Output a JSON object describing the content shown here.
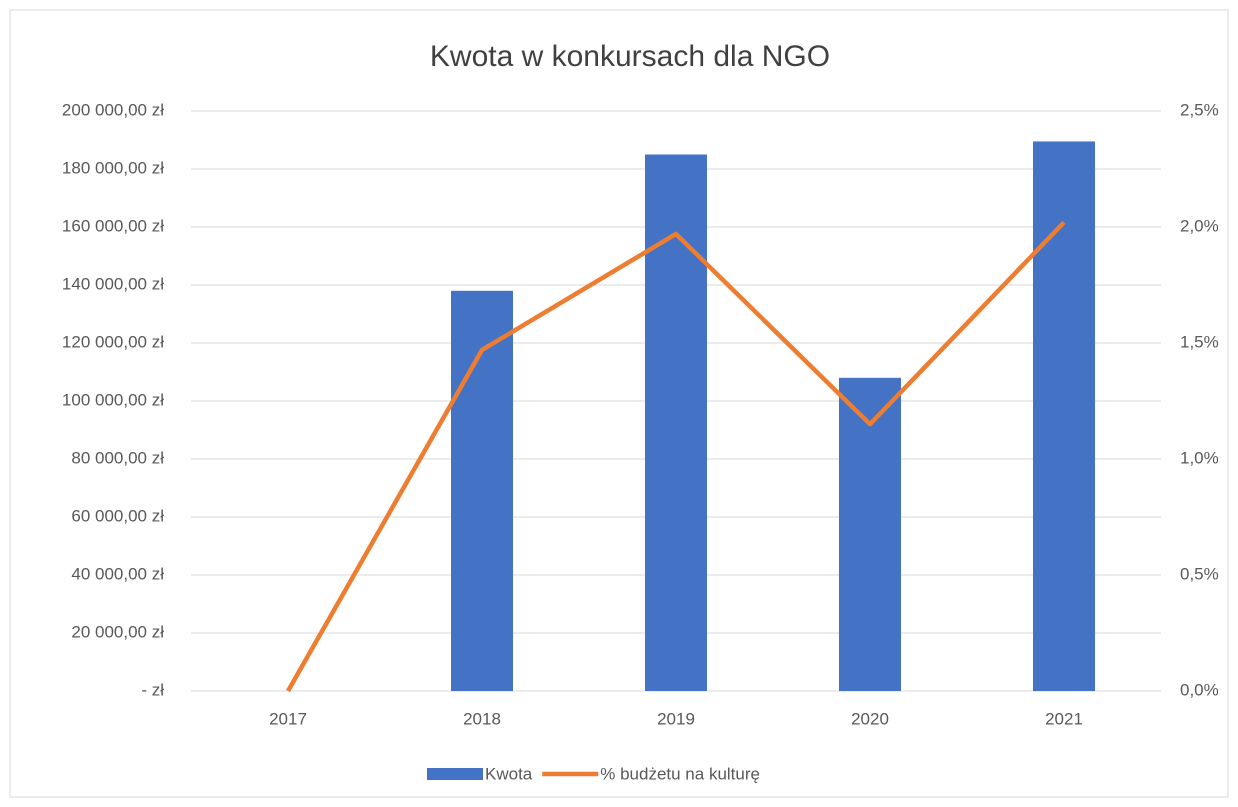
{
  "chart_data": {
    "type": "bar",
    "title": "Kwota w konkursach dla NGO",
    "categories": [
      "2017",
      "2018",
      "2019",
      "2020",
      "2021"
    ],
    "series": [
      {
        "name": "Kwota",
        "type": "bar",
        "axis": "y",
        "color": "#4472c4",
        "values": [
          0,
          138000,
          185000,
          108000,
          189500
        ]
      },
      {
        "name": "% budżetu na kulturę",
        "type": "line",
        "axis": "y2",
        "color": "#ed7d31",
        "values": [
          0,
          1.47,
          1.97,
          1.15,
          2.02
        ]
      }
    ],
    "ylim": [
      0,
      200000
    ],
    "yticks": [
      {
        "value": 0,
        "label": "-   zł"
      },
      {
        "value": 20000,
        "label": "20 000,00 zł"
      },
      {
        "value": 40000,
        "label": "40 000,00 zł"
      },
      {
        "value": 60000,
        "label": "60 000,00 zł"
      },
      {
        "value": 80000,
        "label": "80 000,00 zł"
      },
      {
        "value": 100000,
        "label": "100 000,00 zł"
      },
      {
        "value": 120000,
        "label": "120 000,00 zł"
      },
      {
        "value": 140000,
        "label": "140 000,00 zł"
      },
      {
        "value": 160000,
        "label": "160 000,00 zł"
      },
      {
        "value": 180000,
        "label": "180 000,00 zł"
      },
      {
        "value": 200000,
        "label": "200 000,00 zł"
      }
    ],
    "y2lim": [
      0,
      2.5
    ],
    "y2ticks": [
      {
        "value": 0,
        "label": "0,0%"
      },
      {
        "value": 0.5,
        "label": "0,5%"
      },
      {
        "value": 1,
        "label": "1,0%"
      },
      {
        "value": 1.5,
        "label": "1,5%"
      },
      {
        "value": 2,
        "label": "2,0%"
      },
      {
        "value": 2.5,
        "label": "2,5%"
      }
    ],
    "grid": true,
    "legend": "bottom"
  }
}
